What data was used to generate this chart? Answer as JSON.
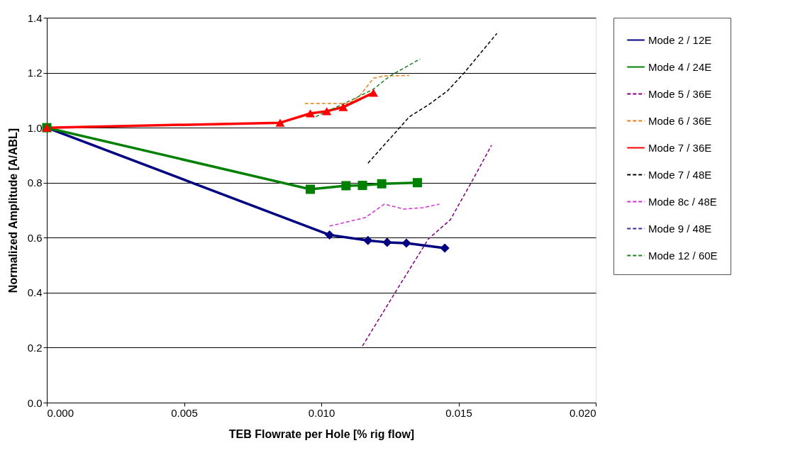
{
  "chart_data": {
    "type": "line",
    "xlabel": "TEB Flowrate per Hole [% rig flow]",
    "ylabel": "Normalized Amplitude [A/ABL]",
    "xlim": [
      0,
      0.02
    ],
    "xticks": [
      {
        "value": 0,
        "label": "0.000"
      },
      {
        "value": 0.005,
        "label": "0.005"
      },
      {
        "value": 0.01,
        "label": "0.010"
      },
      {
        "value": 0.015,
        "label": "0.015"
      },
      {
        "value": 0.02,
        "label": "0.020"
      }
    ],
    "ylim": [
      0,
      1.4
    ],
    "yticks": [
      {
        "value": 0,
        "label": "0.0"
      },
      {
        "value": 0.2,
        "label": "0.2"
      },
      {
        "value": 0.4,
        "label": "0.4"
      },
      {
        "value": 0.6,
        "label": "0.6"
      },
      {
        "value": 0.8,
        "label": "0.8"
      },
      {
        "value": 1.0,
        "label": "1.0"
      },
      {
        "value": 1.2,
        "label": "1.2"
      },
      {
        "value": 1.4,
        "label": "1.4"
      }
    ],
    "grid": "y",
    "legend": "right",
    "series": [
      {
        "name": "Mode 2 / 12E",
        "color": "#000080",
        "marker": "diamond",
        "line_style": "solid",
        "x": [
          0,
          0.0103,
          0.0117,
          0.0124,
          0.0131,
          0.0145
        ],
        "values": [
          1.0,
          0.61,
          0.59,
          0.583,
          0.58,
          0.562
        ]
      },
      {
        "name": "Mode 4 / 24E",
        "color": "#008000",
        "marker": "square",
        "line_style": "solid",
        "x": [
          0,
          0.0096,
          0.0109,
          0.0115,
          0.0122,
          0.0135
        ],
        "values": [
          1.0,
          0.776,
          0.789,
          0.79,
          0.796,
          0.8
        ]
      },
      {
        "name": "Mode 5 / 36E",
        "color": "#800080",
        "marker": "none",
        "line_style": "dashed",
        "x": [
          0.0115,
          0.0127,
          0.0139,
          0.0147,
          0.0155,
          0.0162
        ],
        "values": [
          0.206,
          0.402,
          0.595,
          0.665,
          0.807,
          0.936
        ]
      },
      {
        "name": "Mode 6 / 36E",
        "color": "#e08020",
        "marker": "none",
        "line_style": "dashed",
        "x": [
          0.0094,
          0.011,
          0.0114,
          0.0119,
          0.0123,
          0.0132
        ],
        "values": [
          1.088,
          1.088,
          1.116,
          1.18,
          1.188,
          1.19
        ]
      },
      {
        "name": "Mode 7 / 36E",
        "color": "#ff0000",
        "marker": "triangle",
        "line_style": "solid",
        "x": [
          0,
          0.0085,
          0.0096,
          0.0102,
          0.0108,
          0.0119
        ],
        "values": [
          1.0,
          1.018,
          1.052,
          1.06,
          1.075,
          1.127
        ]
      },
      {
        "name": "Mode 7 / 48E",
        "color": "#000000",
        "marker": "none",
        "line_style": "dashed",
        "x": [
          0.0117,
          0.0129,
          0.0132,
          0.0139,
          0.0146,
          0.0152,
          0.0164
        ],
        "values": [
          0.871,
          1.005,
          1.039,
          1.083,
          1.134,
          1.199,
          1.343
        ]
      },
      {
        "name": "Mode 8c / 48E",
        "color": "#cc33cc",
        "marker": "none",
        "line_style": "dashed",
        "x": [
          0.0103,
          0.0116,
          0.0123,
          0.013,
          0.0137,
          0.0143
        ],
        "values": [
          0.642,
          0.673,
          0.722,
          0.704,
          0.709,
          0.722
        ]
      },
      {
        "name": "Mode 9 / 48E",
        "color": "#333399",
        "marker": "none",
        "line_style": "dashed"
      },
      {
        "name": "Mode 12 / 60E",
        "color": "#208020",
        "marker": "none",
        "line_style": "dashed",
        "x": [
          0.0098,
          0.011,
          0.0119,
          0.0125,
          0.0136
        ],
        "values": [
          1.04,
          1.096,
          1.14,
          1.188,
          1.25
        ]
      }
    ]
  }
}
